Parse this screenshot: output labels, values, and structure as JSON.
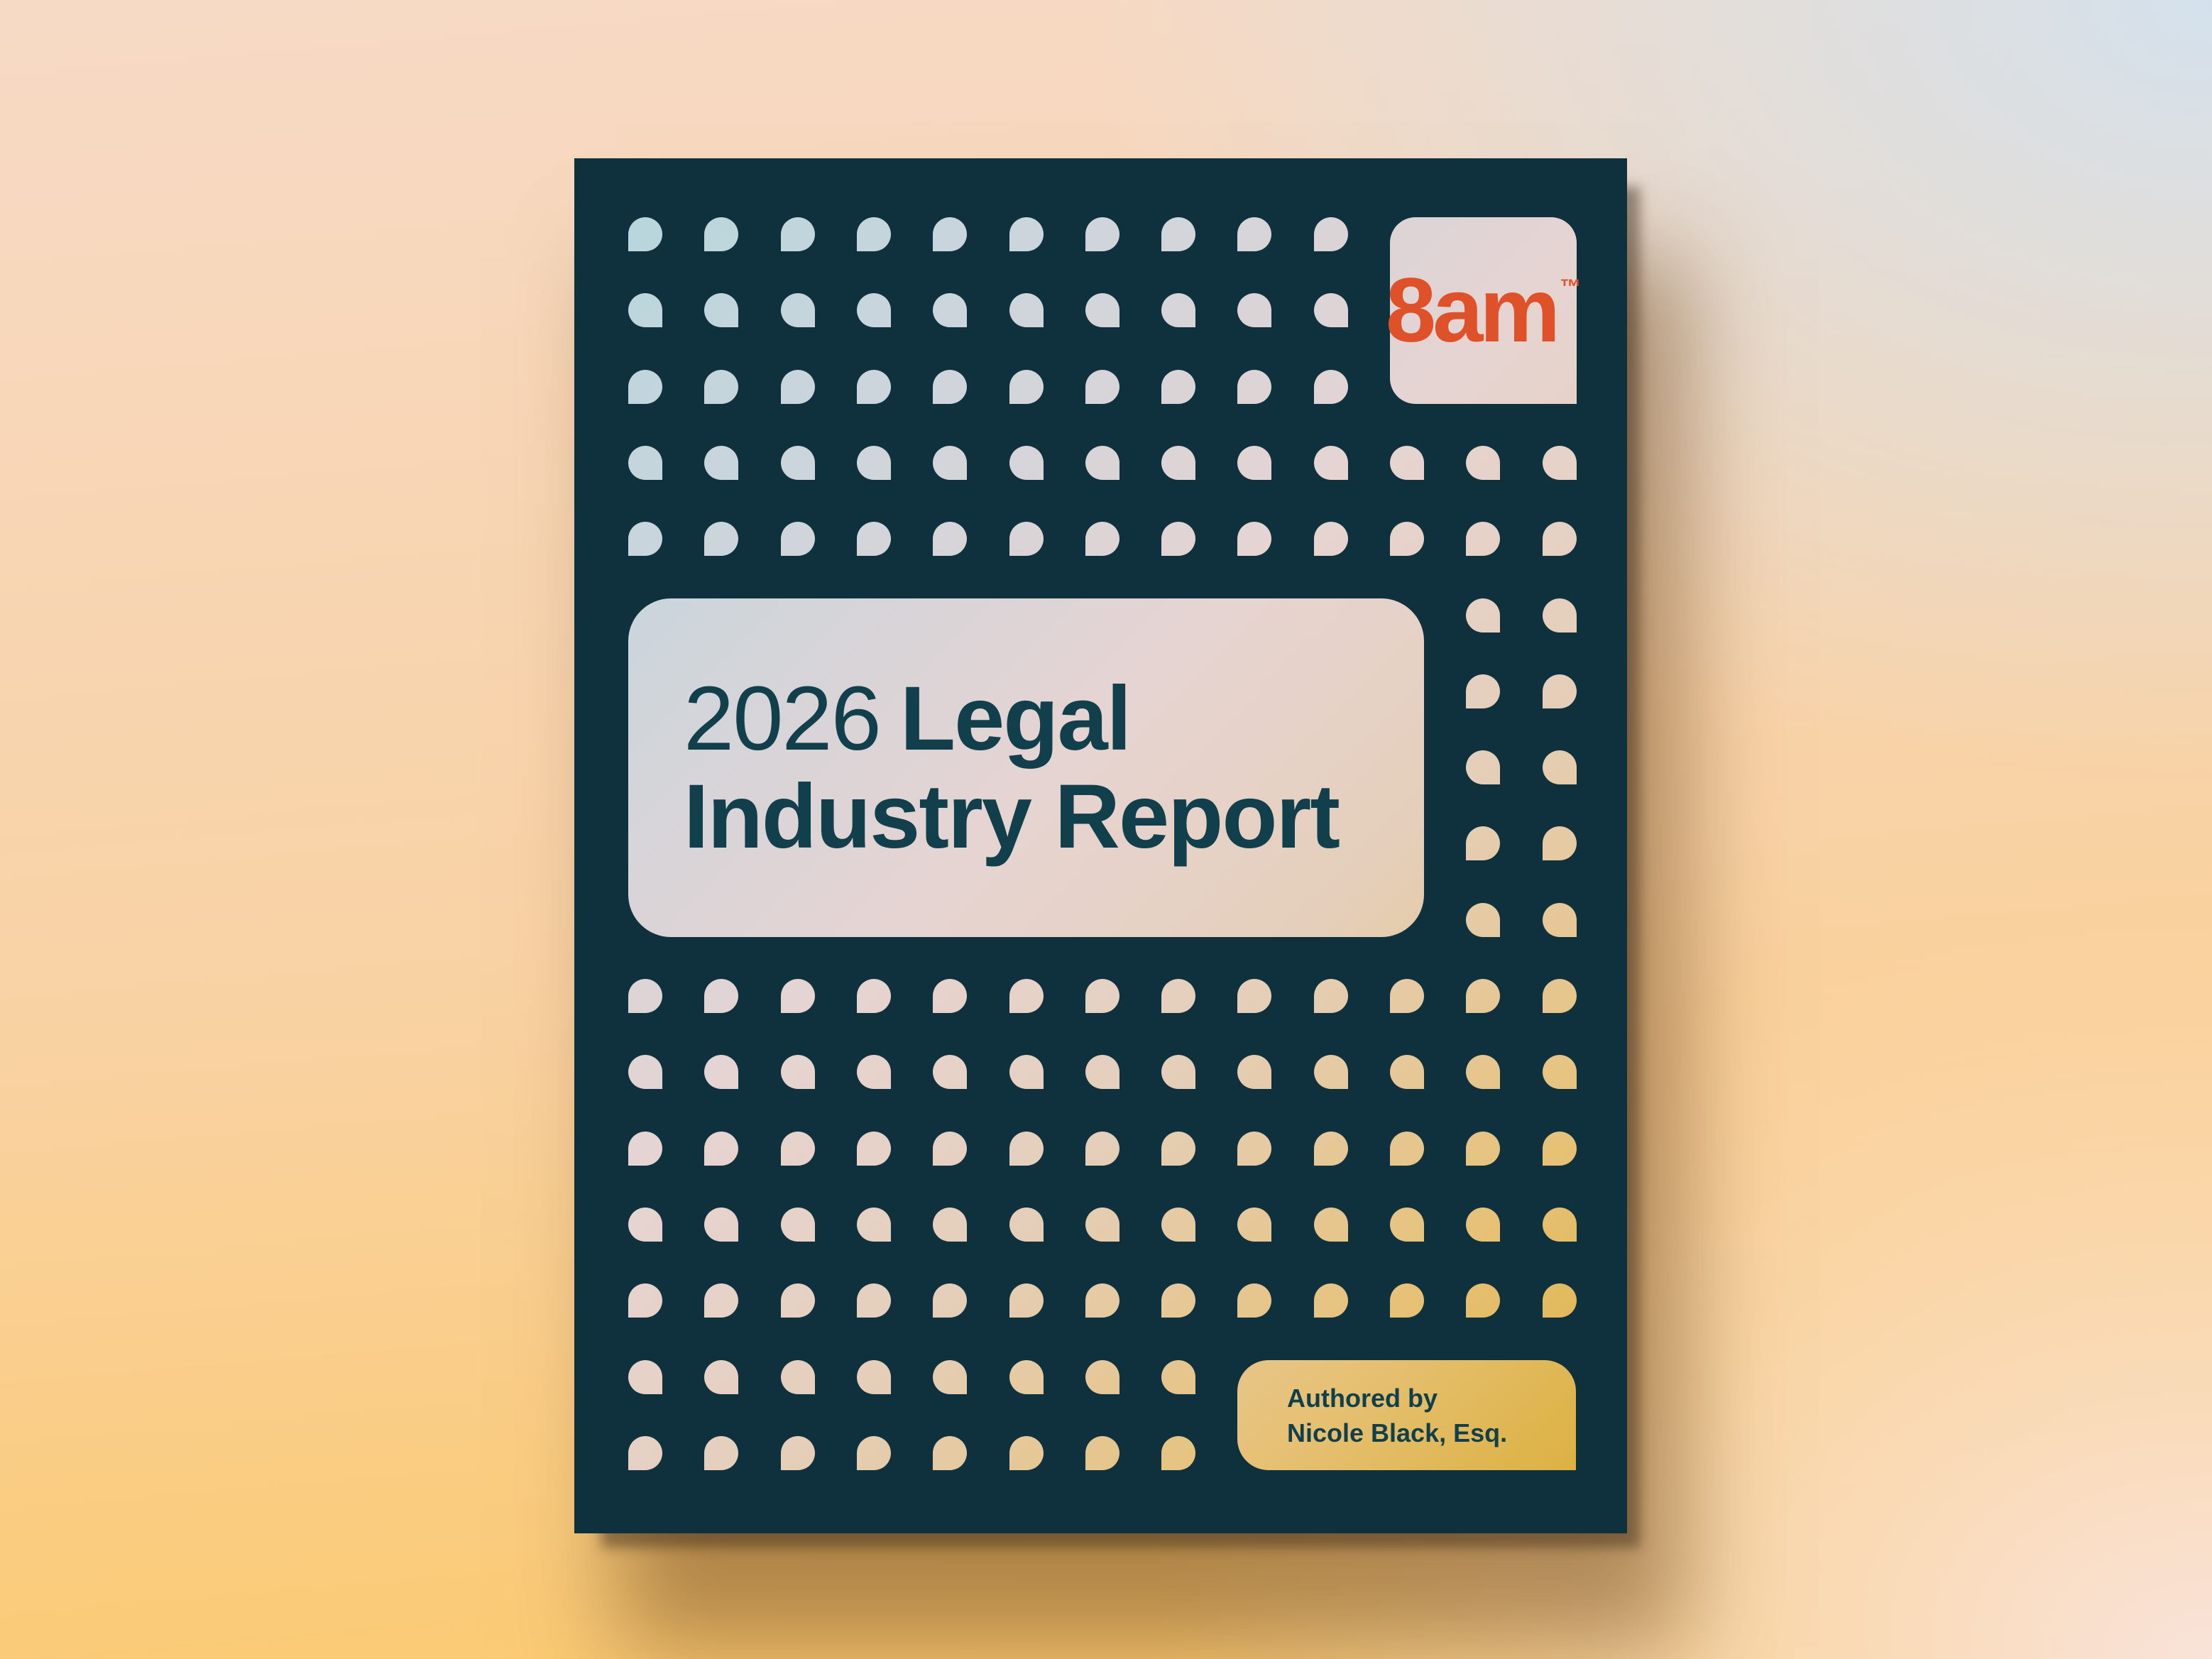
{
  "cover": {
    "logo": {
      "text": "8am",
      "trademark": "™"
    },
    "title": {
      "year": "2026",
      "line1_bold": "Legal",
      "line2_bold": "Industry Report"
    },
    "author": {
      "line1": "Authored by",
      "line2": "Nicole Black, Esq."
    }
  },
  "colors": {
    "cover_navy": "#0f313e",
    "logo_orange": "#de5129",
    "text_navy": "#123f4c",
    "light_gradient_stops": [
      "#b2d6dc",
      "#ccd5dc",
      "#e6d4d2",
      "#e5cfbb",
      "#e6c175",
      "#d9ab30"
    ],
    "page_background": {
      "top_left": "#f7dac6",
      "bottom_left": "#fbc96a",
      "top_right": "#d4e1ec",
      "bottom_right": "#f9e3da"
    }
  },
  "dot_grid": {
    "columns": 13,
    "rows": 17
  }
}
